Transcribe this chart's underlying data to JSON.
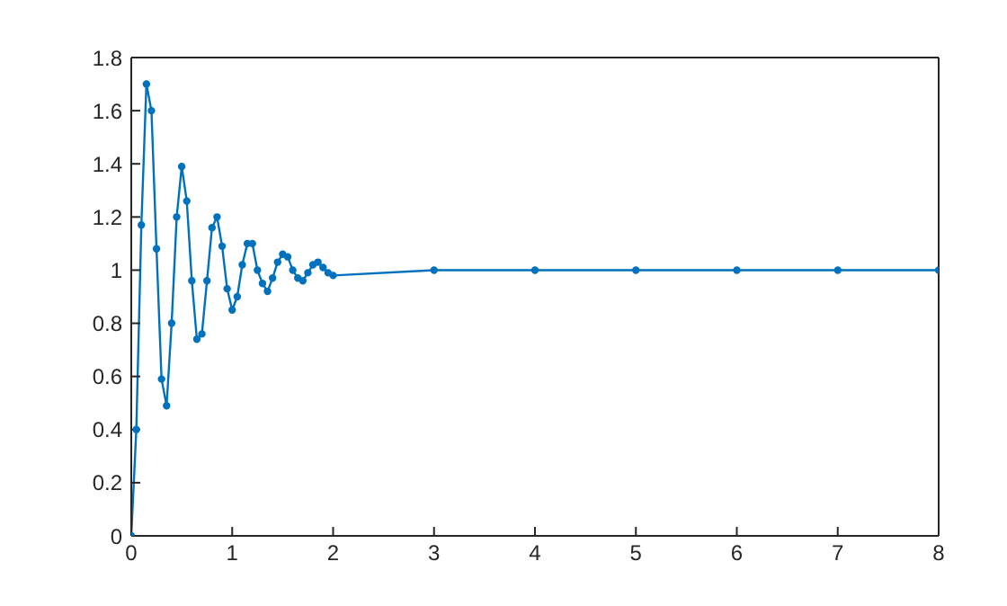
{
  "chart_data": {
    "type": "line",
    "marker": "circle",
    "grid": false,
    "xlim": [
      0,
      8
    ],
    "xticks": [
      0,
      1,
      2,
      3,
      4,
      5,
      6,
      7,
      8
    ],
    "ylim": [
      0,
      1.8
    ],
    "yticks": [
      0,
      0.2,
      0.4,
      0.6,
      0.8,
      1,
      1.2,
      1.4,
      1.6,
      1.8
    ],
    "x": [
      0,
      0.05,
      0.1,
      0.15,
      0.2,
      0.25,
      0.3,
      0.35,
      0.4,
      0.45,
      0.5,
      0.55,
      0.6,
      0.65,
      0.7,
      0.75,
      0.8,
      0.85,
      0.9,
      0.95,
      1,
      1.05,
      1.1,
      1.15,
      1.2,
      1.25,
      1.3,
      1.35,
      1.4,
      1.45,
      1.5,
      1.55,
      1.6,
      1.65,
      1.7,
      1.75,
      1.8,
      1.85,
      1.9,
      1.95,
      2,
      3,
      4,
      5,
      6,
      7,
      8
    ],
    "series": [
      {
        "color": "#0072bd",
        "values": [
          0,
          0.4,
          1.17,
          1.7,
          1.6,
          1.08,
          0.59,
          0.49,
          0.8,
          1.2,
          1.39,
          1.26,
          0.96,
          0.74,
          0.76,
          0.96,
          1.16,
          1.2,
          1.09,
          0.93,
          0.85,
          0.9,
          1.02,
          1.1,
          1.1,
          1.0,
          0.95,
          0.92,
          0.97,
          1.03,
          1.06,
          1.05,
          1.0,
          0.97,
          0.96,
          0.99,
          1.02,
          1.03,
          1.01,
          0.99,
          0.98,
          1.0,
          1.0,
          1.0,
          1.0,
          1.0,
          1.0
        ]
      }
    ]
  }
}
